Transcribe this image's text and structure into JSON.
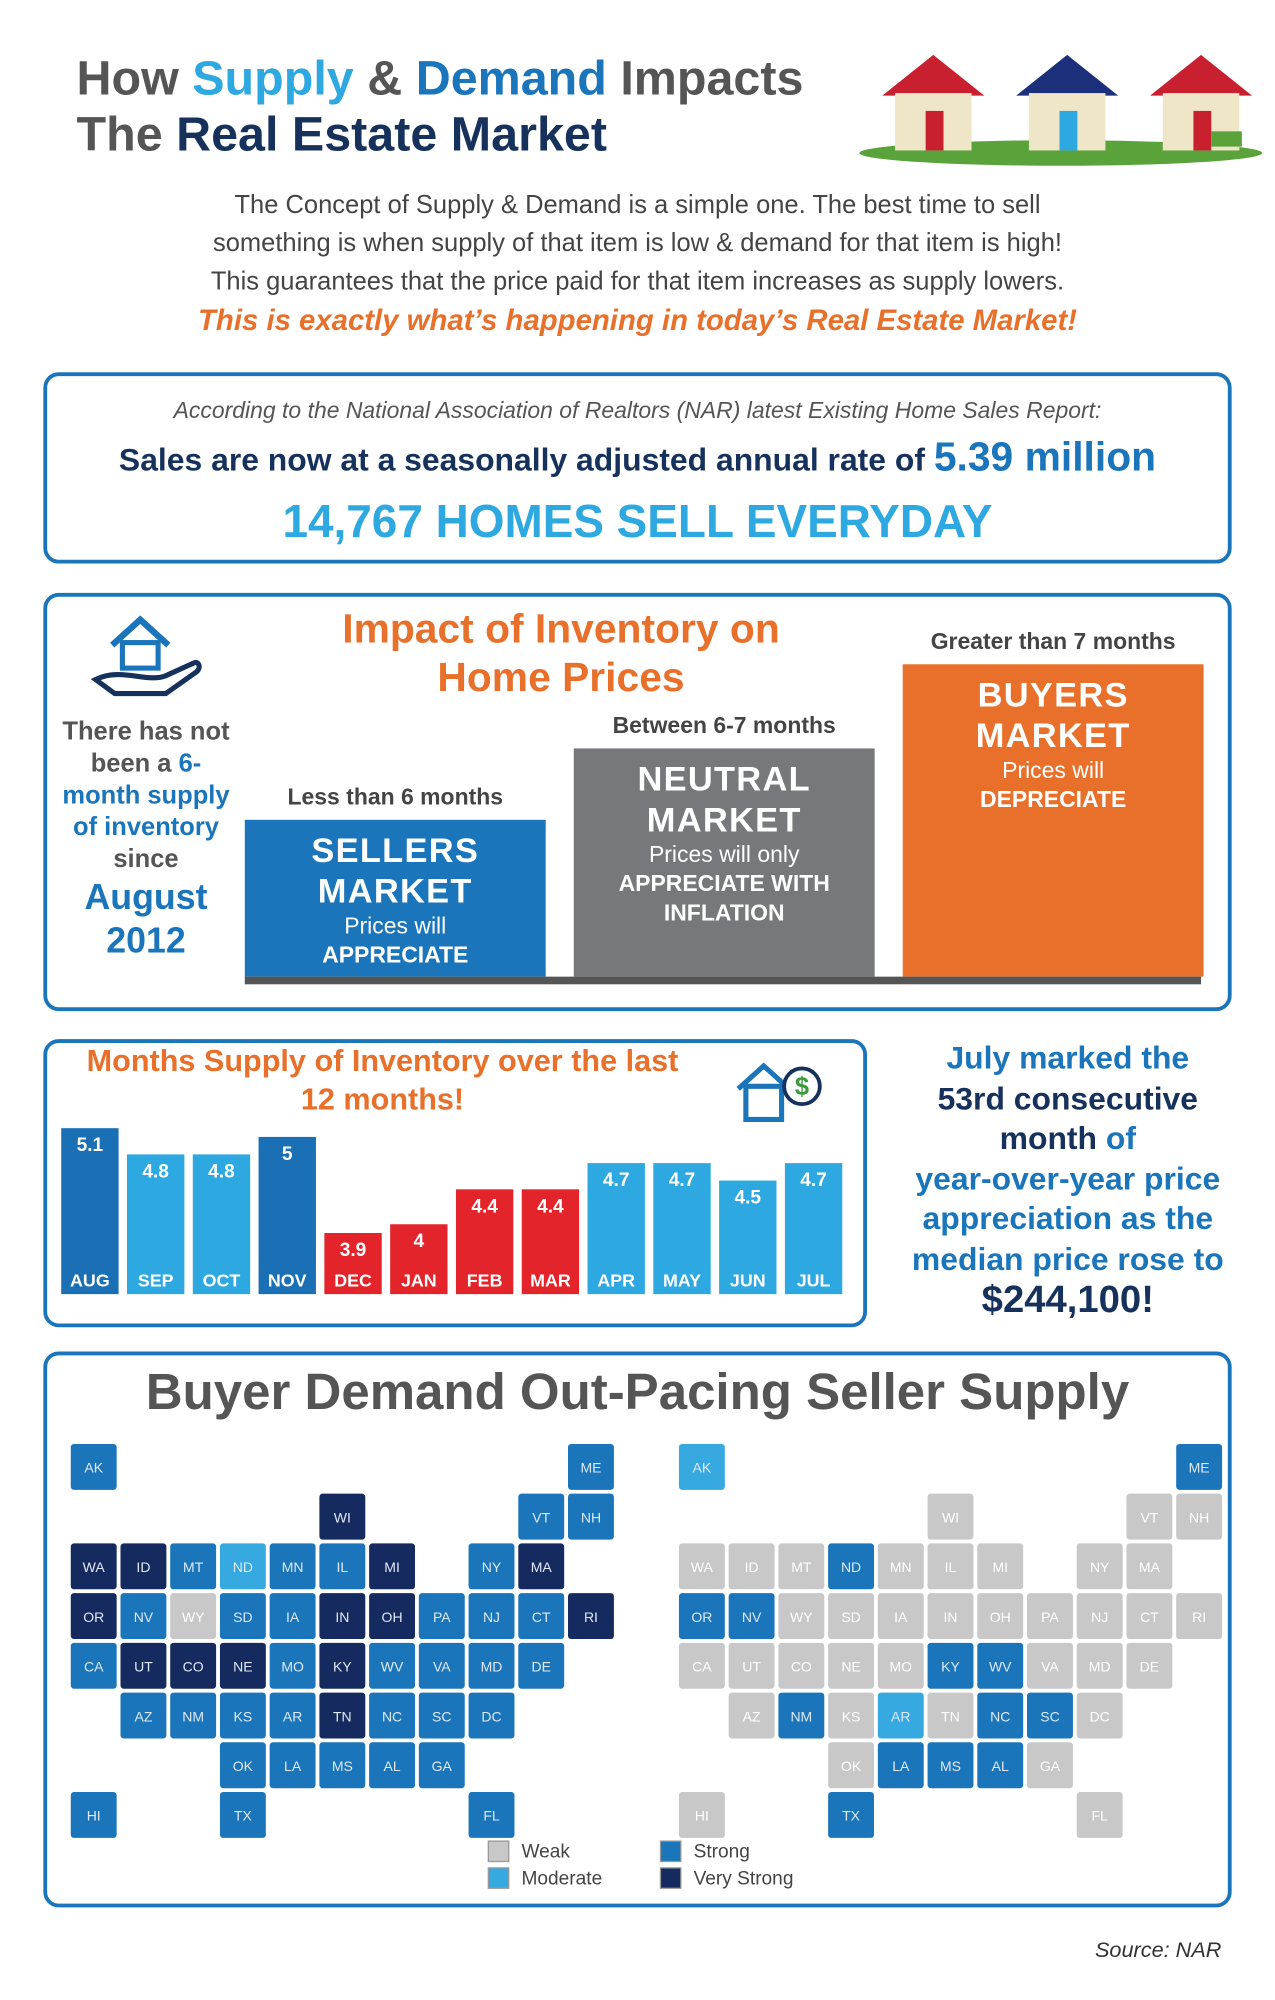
{
  "header": {
    "title_line1": [
      "How",
      "Supply",
      "&",
      "Demand",
      "Impacts"
    ],
    "title_line2": [
      "The",
      "Real Estate Market"
    ]
  },
  "intro": {
    "lines": [
      "The Concept of Supply & Demand is a simple one. The best time to sell",
      "something is when supply of that item is low & demand for that item is high!",
      "This guarantees that the price paid for that item increases as supply lowers."
    ],
    "tagline": "This is exactly what’s happening in today’s Real Estate Market!"
  },
  "nar": {
    "source": "According to the National Association of Realtors (NAR) latest Existing Home Sales Report:",
    "sales_text": "Sales are now at a seasonally adjusted annual rate of",
    "sales_value": "5.39 million",
    "homes": "14,767 HOMES SELL EVERYDAY"
  },
  "impact": {
    "title": "Impact of Inventory on Home Prices",
    "side": [
      "There has not been a",
      "6-month supply of inventory",
      "since",
      "August 2012"
    ],
    "markets": [
      {
        "range": "Less than 6 months",
        "name": "SELLERS MARKET",
        "line1": "Prices will",
        "line2": "APPRECIATE",
        "color": "#1a75bb"
      },
      {
        "range": "Between 6-7 months",
        "name": "NEUTRAL MARKET",
        "line1": "Prices will only",
        "line2": "APPRECIATE WITH INFLATION",
        "color": "#77787b"
      },
      {
        "range": "Greater than 7 months",
        "name": "BUYERS MARKET",
        "line1": "Prices will",
        "line2": "DEPRECIATE",
        "color": "#e8702a"
      }
    ]
  },
  "chart_data": {
    "type": "bar",
    "title": "Months Supply of Inventory over the last 12 months!",
    "categories": [
      "AUG",
      "SEP",
      "OCT",
      "NOV",
      "DEC",
      "JAN",
      "FEB",
      "MAR",
      "APR",
      "MAY",
      "JUN",
      "JUL"
    ],
    "values": [
      5.1,
      4.8,
      4.8,
      5.0,
      3.9,
      4.0,
      4.4,
      4.4,
      4.7,
      4.7,
      4.5,
      4.7
    ],
    "colors": [
      "#1a6fb5",
      "#2ea8e0",
      "#2ea8e0",
      "#1a6fb5",
      "#e3242b",
      "#e3242b",
      "#e3242b",
      "#e3242b",
      "#2ea8e0",
      "#2ea8e0",
      "#2ea8e0",
      "#2ea8e0"
    ],
    "ylim": [
      3.2,
      5.2
    ]
  },
  "note": {
    "line1": "July marked the",
    "line2": "53rd consecutive",
    "line3a": "month",
    "line3b": "of",
    "rest": "year-over-year price appreciation as the median price rose to",
    "value": "$244,100!"
  },
  "maps": {
    "title": "Buyer Demand Out-Pacing Seller Supply",
    "legend": [
      {
        "label": "Weak",
        "color": "#c8c8c8"
      },
      {
        "label": "Moderate",
        "color": "#36a9e1"
      },
      {
        "label": "Strong",
        "color": "#1a75bb"
      },
      {
        "label": "Very Strong",
        "color": "#152a5e"
      }
    ],
    "states": [
      "AK",
      "ME",
      "WI",
      "VT",
      "NH",
      "WA",
      "ID",
      "MT",
      "ND",
      "MN",
      "IL",
      "MI",
      "NY",
      "MA",
      "OR",
      "NV",
      "WY",
      "SD",
      "IA",
      "IN",
      "OH",
      "PA",
      "NJ",
      "CT",
      "RI",
      "CA",
      "UT",
      "CO",
      "NE",
      "MO",
      "KY",
      "WV",
      "VA",
      "MD",
      "DE",
      "AZ",
      "NM",
      "KS",
      "AR",
      "TN",
      "NC",
      "SC",
      "DC",
      "OK",
      "LA",
      "MS",
      "AL",
      "GA",
      "HI",
      "TX",
      "FL"
    ],
    "buyer_demand": [
      2,
      2,
      3,
      2,
      2,
      3,
      3,
      2,
      1,
      2,
      2,
      3,
      2,
      3,
      3,
      2,
      0,
      2,
      2,
      3,
      3,
      2,
      2,
      2,
      3,
      2,
      3,
      3,
      3,
      2,
      3,
      2,
      2,
      2,
      2,
      2,
      2,
      2,
      2,
      3,
      2,
      2,
      2,
      2,
      2,
      2,
      2,
      2,
      2,
      2,
      2
    ],
    "seller_supply": [
      1,
      2,
      0,
      0,
      0,
      0,
      0,
      0,
      2,
      0,
      0,
      0,
      0,
      0,
      2,
      2,
      0,
      0,
      0,
      0,
      0,
      0,
      0,
      0,
      0,
      0,
      0,
      0,
      0,
      0,
      2,
      2,
      0,
      0,
      0,
      0,
      2,
      0,
      1,
      0,
      2,
      2,
      0,
      0,
      2,
      2,
      2,
      0,
      0,
      2,
      0
    ]
  },
  "source": "Source: NAR"
}
